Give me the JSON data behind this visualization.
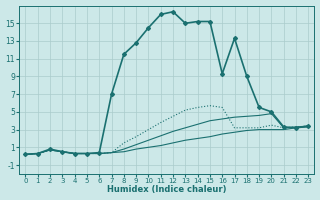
{
  "xlabel": "Humidex (Indice chaleur)",
  "bg_color": "#cce8e8",
  "grid_color": "#aacccc",
  "line_color": "#1a7070",
  "xlim": [
    -0.5,
    23.5
  ],
  "ylim": [
    -2.0,
    17.0
  ],
  "xticks": [
    0,
    1,
    2,
    3,
    4,
    5,
    6,
    7,
    8,
    9,
    10,
    11,
    12,
    13,
    14,
    15,
    16,
    17,
    18,
    19,
    20,
    21,
    22,
    23
  ],
  "yticks": [
    -1,
    1,
    3,
    5,
    7,
    9,
    11,
    13,
    15
  ],
  "lines": [
    {
      "x": [
        0,
        1,
        2,
        3,
        4,
        5,
        6,
        7,
        8,
        9,
        10,
        11,
        12,
        13,
        14,
        15,
        16,
        17,
        18,
        19,
        20,
        21,
        22,
        23
      ],
      "y": [
        0.2,
        0.3,
        0.7,
        0.5,
        0.3,
        0.3,
        0.3,
        0.4,
        0.5,
        0.8,
        1.0,
        1.2,
        1.5,
        1.8,
        2.0,
        2.2,
        2.5,
        2.7,
        2.9,
        3.0,
        3.0,
        3.0,
        3.2,
        3.3
      ],
      "linestyle": "solid",
      "marker": "",
      "linewidth": 0.8
    },
    {
      "x": [
        0,
        1,
        2,
        3,
        4,
        5,
        6,
        7,
        8,
        9,
        10,
        11,
        12,
        13,
        14,
        15,
        16,
        17,
        18,
        19,
        20,
        21,
        22,
        23
      ],
      "y": [
        0.2,
        0.3,
        0.7,
        0.5,
        0.3,
        0.3,
        0.3,
        0.4,
        0.8,
        1.3,
        1.8,
        2.3,
        2.8,
        3.2,
        3.6,
        4.0,
        4.2,
        4.4,
        4.5,
        4.6,
        4.8,
        3.2,
        3.3,
        3.4
      ],
      "linestyle": "solid",
      "marker": "",
      "linewidth": 0.8
    },
    {
      "x": [
        0,
        1,
        2,
        3,
        4,
        5,
        6,
        7,
        8,
        9,
        10,
        11,
        12,
        13,
        14,
        15,
        16,
        17,
        18,
        19,
        20,
        21,
        22,
        23
      ],
      "y": [
        0.2,
        0.3,
        0.7,
        0.5,
        0.3,
        0.3,
        0.3,
        0.4,
        1.5,
        2.2,
        3.0,
        3.8,
        4.5,
        5.2,
        5.5,
        5.7,
        5.5,
        3.2,
        3.2,
        3.2,
        3.5,
        3.2,
        3.3,
        3.4
      ],
      "linestyle": "dotted",
      "marker": "",
      "linewidth": 0.8
    },
    {
      "x": [
        0,
        1,
        2,
        3,
        4,
        5,
        6,
        7,
        8,
        9,
        10,
        11,
        12,
        13,
        14,
        15,
        16,
        17,
        18,
        19,
        20,
        21,
        22,
        23
      ],
      "y": [
        0.2,
        0.3,
        0.8,
        0.5,
        0.3,
        0.3,
        0.4,
        7.0,
        11.5,
        12.8,
        14.5,
        16.0,
        16.3,
        15.0,
        15.2,
        15.2,
        9.3,
        13.3,
        9.0,
        5.5,
        5.0,
        3.3,
        3.2,
        3.4
      ],
      "linestyle": "solid",
      "marker": "D",
      "linewidth": 1.2
    }
  ]
}
